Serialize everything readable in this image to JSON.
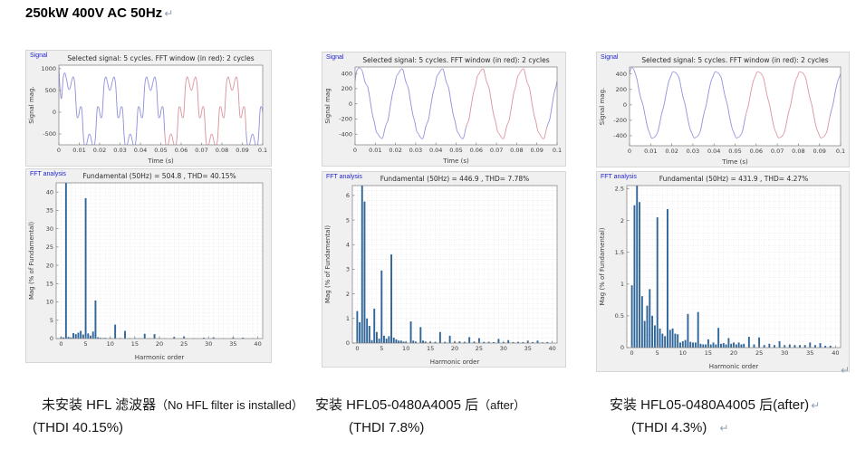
{
  "page": {
    "title": "250kW 400V AC 50Hz",
    "return_mark": "↵"
  },
  "figure_chrome": {
    "signal_label": "Signal",
    "fft_label": "FFT analysis",
    "label_color": "#1f1fd0",
    "figure_bg": "#f0f0f0",
    "plot_bg": "#ffffff",
    "axis_color": "#7c7c7c",
    "grid_color": "#e3e3e3",
    "bar_color": "#2f6598",
    "line_color": "#8b8bdc",
    "window_color": "#d98f98",
    "text_color": "#3d3d3d"
  },
  "captions": [
    {
      "line1_main": "未安装 HFL 滤波器",
      "line1_sub": "（No HFL filter is installed）",
      "line1_suffix": "",
      "line2": "(THDI 40.15%)",
      "line2_suffix": ""
    },
    {
      "line1_main": "安装 HFL05-0480A4005 后",
      "line1_sub": "（after）",
      "line1_suffix": "",
      "line2": "(THDI 7.8%)",
      "line2_suffix": ""
    },
    {
      "line1_main": "安装 HFL05-0480A4005 后(after)",
      "line1_sub": "",
      "line1_suffix": "↵",
      "line2": "(THDI 4.3%)",
      "line2_suffix": "↵"
    }
  ],
  "chart_data": [
    {
      "id": "signal-1",
      "panel": 1,
      "type": "line",
      "title": "Selected signal: 5 cycles. FFT window (in red): 2 cycles",
      "xlabel": "Time (s)",
      "ylabel": "Signal mag.",
      "xlim": [
        0,
        0.1
      ],
      "ylim": [
        -750,
        1080
      ],
      "xticks": [
        0,
        0.01,
        0.02,
        0.03,
        0.04,
        0.05,
        0.06,
        0.07,
        0.08,
        0.09,
        0.1
      ],
      "yticks": [
        -500,
        0,
        500,
        1000
      ],
      "fft_window": [
        0.052,
        0.092
      ],
      "wave": {
        "amplitude": 715,
        "phase_deg": 0,
        "harmonics": [
          {
            "n": 5,
            "pct": 38.3,
            "deg": 180
          },
          {
            "n": 7,
            "pct": 10.4,
            "deg": 180
          },
          {
            "n": 11,
            "pct": 3.8,
            "deg": 0
          },
          {
            "n": 13,
            "pct": 2.1,
            "deg": 0
          },
          {
            "n": 17,
            "pct": 1.3,
            "deg": 180
          },
          {
            "n": 19,
            "pct": 1.2,
            "deg": 180
          }
        ],
        "transient": {
          "amp": 1050,
          "tau": 0.0012,
          "freq": 0
        }
      }
    },
    {
      "id": "fft-1",
      "panel": 1,
      "type": "bar",
      "title": "Fundamental (50Hz) = 504.8 , THD= 40.15%",
      "xlabel": "Harmonic order",
      "ylabel": "Mag (% of Fundamental)",
      "xlim": [
        -1,
        41
      ],
      "ylim": [
        0,
        42.5
      ],
      "xticks": [
        0,
        5,
        10,
        15,
        20,
        25,
        30,
        35,
        40
      ],
      "yticks": [
        0,
        5,
        10,
        15,
        20,
        25,
        30,
        35,
        40
      ],
      "grid_y_step": 1,
      "bars": [
        [
          0,
          0.4
        ],
        [
          0.5,
          0.3
        ],
        [
          1,
          100
        ],
        [
          1.5,
          0.45
        ],
        [
          2,
          0.3
        ],
        [
          2.5,
          1.5
        ],
        [
          3,
          1.2
        ],
        [
          3.5,
          1.6
        ],
        [
          4,
          2.1
        ],
        [
          4.5,
          1.1
        ],
        [
          5,
          38.3
        ],
        [
          5.5,
          1.4
        ],
        [
          6,
          0.8
        ],
        [
          6.5,
          1.9
        ],
        [
          7,
          10.4
        ],
        [
          7.5,
          0.35
        ],
        [
          8,
          0.2
        ],
        [
          8.5,
          0.15
        ],
        [
          9,
          0.2
        ],
        [
          10,
          0.15
        ],
        [
          11,
          3.8
        ],
        [
          12,
          0.15
        ],
        [
          13,
          2.1
        ],
        [
          14,
          0.1
        ],
        [
          15,
          0.12
        ],
        [
          16,
          0.1
        ],
        [
          17,
          1.3
        ],
        [
          18,
          0.1
        ],
        [
          19,
          1.2
        ],
        [
          20,
          0.08
        ],
        [
          21,
          0.1
        ],
        [
          23,
          0.45
        ],
        [
          25,
          0.6
        ],
        [
          27,
          0.12
        ],
        [
          29,
          0.25
        ],
        [
          31,
          0.35
        ],
        [
          33,
          0.1
        ],
        [
          35,
          0.3
        ],
        [
          37,
          0.25
        ],
        [
          39,
          0.1
        ]
      ]
    },
    {
      "id": "signal-2",
      "panel": 2,
      "type": "line",
      "title": "Selected signal: 5 cycles. FFT window (in red): 2 cycles",
      "xlabel": "Time (s)",
      "ylabel": "Signal mag",
      "xlim": [
        0,
        0.1
      ],
      "ylim": [
        -540,
        485
      ],
      "xticks": [
        0,
        0.01,
        0.02,
        0.03,
        0.04,
        0.05,
        0.06,
        0.07,
        0.08,
        0.09,
        0.1
      ],
      "yticks": [
        -400,
        -200,
        0,
        200,
        400
      ],
      "fft_window": [
        0.055,
        0.095
      ],
      "wave": {
        "amplitude": 447,
        "phase_deg": 42,
        "harmonics": [
          {
            "n": 5,
            "pct": 2.95,
            "deg": 180
          },
          {
            "n": 7,
            "pct": 3.6,
            "deg": 0
          },
          {
            "n": 11,
            "pct": 0.88,
            "deg": 0
          },
          {
            "n": 13,
            "pct": 0.65,
            "deg": 0
          }
        ],
        "transient": {
          "amp": 90,
          "tau": 0.004,
          "freq": 170
        }
      }
    },
    {
      "id": "fft-2",
      "panel": 2,
      "type": "bar",
      "title": "Fundamental (50Hz) = 446.9 , THD= 7.78%",
      "xlabel": "Harmonic order",
      "ylabel": "Mag (% of Fundamental)",
      "xlim": [
        -1,
        41
      ],
      "ylim": [
        0,
        6.4
      ],
      "xticks": [
        0,
        5,
        10,
        15,
        20,
        25,
        30,
        35,
        40
      ],
      "yticks": [
        0,
        1,
        2,
        3,
        4,
        5,
        6
      ],
      "grid_y_step": 0.2,
      "bars": [
        [
          0,
          1.3
        ],
        [
          0.5,
          0.85
        ],
        [
          1,
          100
        ],
        [
          1.5,
          5.75
        ],
        [
          2,
          1.0
        ],
        [
          2.5,
          0.7
        ],
        [
          3,
          0.12
        ],
        [
          3.5,
          1.4
        ],
        [
          4,
          0.45
        ],
        [
          4.5,
          0.18
        ],
        [
          5,
          2.95
        ],
        [
          5.5,
          0.3
        ],
        [
          6,
          0.18
        ],
        [
          6.5,
          0.28
        ],
        [
          7,
          3.6
        ],
        [
          7.5,
          0.22
        ],
        [
          8,
          0.15
        ],
        [
          8.5,
          0.1
        ],
        [
          9,
          0.1
        ],
        [
          9.5,
          0.06
        ],
        [
          10,
          0.06
        ],
        [
          11,
          0.88
        ],
        [
          11.5,
          0.1
        ],
        [
          12,
          0.06
        ],
        [
          13,
          0.65
        ],
        [
          13.5,
          0.1
        ],
        [
          14,
          0.06
        ],
        [
          15,
          0.06
        ],
        [
          16,
          0.05
        ],
        [
          17,
          0.45
        ],
        [
          18,
          0.05
        ],
        [
          19,
          0.3
        ],
        [
          20,
          0.06
        ],
        [
          21,
          0.07
        ],
        [
          22,
          0.05
        ],
        [
          23,
          0.24
        ],
        [
          24,
          0.06
        ],
        [
          25,
          0.2
        ],
        [
          26,
          0.05
        ],
        [
          27,
          0.05
        ],
        [
          28,
          0.04
        ],
        [
          29,
          0.17
        ],
        [
          30,
          0.04
        ],
        [
          31,
          0.12
        ],
        [
          32,
          0.04
        ],
        [
          33,
          0.05
        ],
        [
          34,
          0.04
        ],
        [
          35,
          0.1
        ],
        [
          36,
          0.04
        ],
        [
          37,
          0.1
        ],
        [
          38,
          0.03
        ],
        [
          39,
          0.04
        ]
      ]
    },
    {
      "id": "signal-3",
      "panel": 3,
      "type": "line",
      "title": "Selected signal: 5 cycles. FFT window (in red): 2 cycles",
      "xlabel": "Time (s)",
      "ylabel": "Signal mag.",
      "xlim": [
        0,
        0.1
      ],
      "ylim": [
        -530,
        490
      ],
      "xticks": [
        0,
        0.01,
        0.02,
        0.03,
        0.04,
        0.05,
        0.06,
        0.07,
        0.08,
        0.09,
        0.1
      ],
      "yticks": [
        -400,
        -200,
        0,
        200,
        400
      ],
      "fft_window": [
        0.055,
        0.095
      ],
      "wave": {
        "amplitude": 432,
        "phase_deg": 68,
        "harmonics": [
          {
            "n": 5,
            "pct": 2.05,
            "deg": 180
          },
          {
            "n": 7,
            "pct": 2.18,
            "deg": 0
          },
          {
            "n": 11,
            "pct": 0.53,
            "deg": 0
          },
          {
            "n": 13,
            "pct": 0.56,
            "deg": 0
          }
        ],
        "transient": {
          "amp": 80,
          "tau": 0.004,
          "freq": 160
        }
      }
    },
    {
      "id": "fft-3",
      "panel": 3,
      "type": "bar",
      "title": "Fundamental (50Hz) = 431.9 , THD= 4.27%",
      "xlabel": "Harmonic order",
      "ylabel": "Mag (% of Fundamental)",
      "xlim": [
        -1,
        41
      ],
      "ylim": [
        0,
        2.55
      ],
      "xticks": [
        0,
        5,
        10,
        15,
        20,
        25,
        30,
        35,
        40
      ],
      "yticks": [
        0,
        0.5,
        1,
        1.5,
        2,
        2.5
      ],
      "grid_y_step": 0.1,
      "bars": [
        [
          0,
          0.98
        ],
        [
          0.5,
          2.24
        ],
        [
          1,
          100
        ],
        [
          1.5,
          2.29
        ],
        [
          2,
          0.81
        ],
        [
          2.5,
          0.42
        ],
        [
          3,
          0.66
        ],
        [
          3.5,
          0.92
        ],
        [
          4,
          0.5
        ],
        [
          4.5,
          0.35
        ],
        [
          5,
          2.05
        ],
        [
          5.5,
          0.3
        ],
        [
          6,
          0.22
        ],
        [
          6.5,
          0.18
        ],
        [
          7,
          2.18
        ],
        [
          7.5,
          0.28
        ],
        [
          8,
          0.3
        ],
        [
          8.5,
          0.22
        ],
        [
          9,
          0.21
        ],
        [
          9.5,
          0.08
        ],
        [
          10,
          0.1
        ],
        [
          10.5,
          0.12
        ],
        [
          11,
          0.53
        ],
        [
          11.5,
          0.09
        ],
        [
          12,
          0.08
        ],
        [
          12.5,
          0.08
        ],
        [
          13,
          0.56
        ],
        [
          13.5,
          0.06
        ],
        [
          14,
          0.05
        ],
        [
          14.5,
          0.05
        ],
        [
          15,
          0.13
        ],
        [
          15.5,
          0.05
        ],
        [
          16,
          0.08
        ],
        [
          16.5,
          0.05
        ],
        [
          17,
          0.31
        ],
        [
          17.5,
          0.06
        ],
        [
          18,
          0.07
        ],
        [
          18.5,
          0.05
        ],
        [
          19,
          0.15
        ],
        [
          19.5,
          0.06
        ],
        [
          20,
          0.08
        ],
        [
          20.5,
          0.05
        ],
        [
          21,
          0.08
        ],
        [
          21.5,
          0.05
        ],
        [
          22,
          0.06
        ],
        [
          23,
          0.17
        ],
        [
          24,
          0.05
        ],
        [
          25,
          0.16
        ],
        [
          26,
          0.04
        ],
        [
          27,
          0.06
        ],
        [
          28,
          0.04
        ],
        [
          29,
          0.1
        ],
        [
          30,
          0.04
        ],
        [
          31,
          0.05
        ],
        [
          32,
          0.04
        ],
        [
          33,
          0.04
        ],
        [
          34,
          0.04
        ],
        [
          35,
          0.08
        ],
        [
          36,
          0.04
        ],
        [
          37,
          0.07
        ],
        [
          38,
          0.03
        ],
        [
          39,
          0.03
        ]
      ]
    }
  ]
}
